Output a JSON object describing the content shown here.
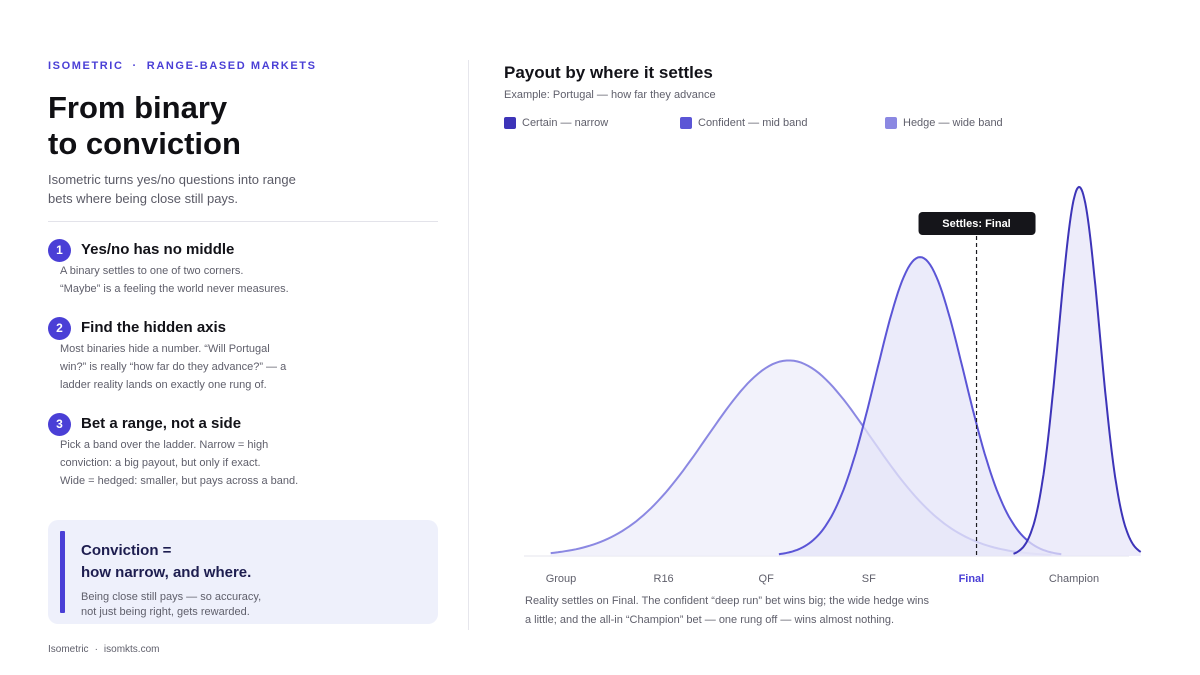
{
  "eyebrow": {
    "brand": "ISOMETRIC",
    "separator": "·",
    "topic": "RANGE-BASED MARKETS"
  },
  "headline": {
    "line1": "From binary",
    "line2": "to conviction"
  },
  "lede": "Isometric turns yes/no questions into range bets where being close still pays.",
  "steps": [
    {
      "number": "1",
      "title": "Yes/no has no middle",
      "lines": [
        "A binary settles to one of two corners.",
        "“Maybe” is a feeling the world never measures."
      ]
    },
    {
      "number": "2",
      "title": "Find the hidden axis",
      "lines": [
        "Most binaries hide a number. “Will Portugal",
        "win?” is really “how far do they advance?” — a",
        "ladder reality lands on exactly one rung of."
      ]
    },
    {
      "number": "3",
      "title": "Bet a range, not a side",
      "lines": [
        "Pick a band over the ladder. Narrow = high",
        "conviction: a big payout, but only if exact.",
        "Wide = hedged: smaller, but pays across a band."
      ]
    }
  ],
  "callout": {
    "title_line1": "Conviction =",
    "title_line2": "how narrow, and where.",
    "note_line1": "Being close still pays — so accuracy,",
    "note_line2": "not just being right, gets rewarded."
  },
  "footer": {
    "brand": "Isometric",
    "separator": "·",
    "site": "isomkts.com"
  },
  "chart_data": {
    "type": "area",
    "title": "Payout by where it settles",
    "subtitle": "Example: Portugal — how far they advance",
    "categories": [
      "Group",
      "R16",
      "QF",
      "SF",
      "Final",
      "Champion"
    ],
    "highlight_category": "Final",
    "settle_label": "Settles: Final",
    "settle_at": 4.05,
    "series": [
      {
        "name": "Certain — narrow",
        "color": "#3d34b8",
        "fill": "#e7e6f8",
        "mean": 5.05,
        "sd": 0.2,
        "peak": 1.0
      },
      {
        "name": "Confident — mid band",
        "color": "#5b55d6",
        "fill": "#e4e4f8",
        "mean": 3.5,
        "sd": 0.43,
        "peak": 0.81
      },
      {
        "name": "Hedge — wide band",
        "color": "#8b88e2",
        "fill": "#eeeefa",
        "mean": 2.22,
        "sd": 0.8,
        "peak": 0.53
      }
    ],
    "legend_position": "top",
    "grid": false,
    "caption_line1": "Reality settles on Final. The confident “deep run” bet wins big; the wide hedge wins",
    "caption_line2": "a little; and the all-in “Champion” bet — one rung off — wins almost nothing."
  }
}
